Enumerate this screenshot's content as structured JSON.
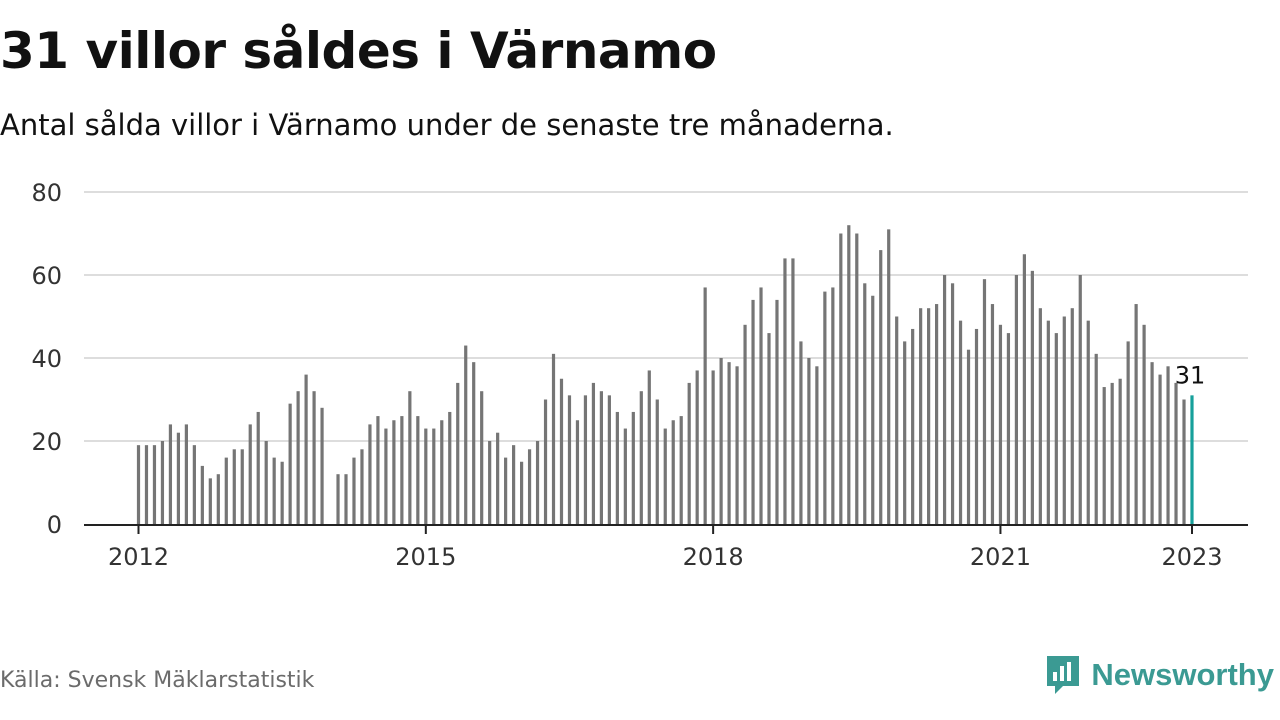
{
  "title": "31 villor såldes i Värnamo",
  "subtitle": "Antal sålda villor i Värnamo under de senaste tre månaderna.",
  "source": "Källa: Svensk Mäklarstatistik",
  "brand": {
    "name": "Newsworthy",
    "icon": "newsworthy-logo-icon"
  },
  "colors": {
    "bar": "#757575",
    "highlight": "#17a09b",
    "grid": "#dddddd",
    "axis": "#222222",
    "brand": "#3b9a93"
  },
  "chart_data": {
    "type": "bar",
    "start": "2012-01",
    "series": [
      {
        "values": [
          19,
          19,
          19,
          20,
          24,
          22,
          24,
          19,
          14,
          11,
          12,
          16,
          18,
          18,
          24,
          27,
          20,
          16,
          15,
          29,
          32,
          36,
          32,
          28,
          null,
          12,
          12,
          16,
          18,
          24,
          26,
          23,
          25,
          26,
          32,
          26,
          23,
          23,
          25,
          27,
          34,
          43,
          39,
          32,
          20,
          22,
          16,
          19,
          15,
          18,
          20,
          30,
          41,
          35,
          31,
          25,
          31,
          34,
          32,
          31,
          27,
          23,
          27,
          32,
          37,
          30,
          23,
          25,
          26,
          34,
          37,
          57,
          37,
          40,
          39,
          38,
          48,
          54,
          57,
          46,
          54,
          64,
          64,
          44,
          40,
          38,
          56,
          57,
          70,
          72,
          70,
          58,
          55,
          66,
          71,
          50,
          44,
          47,
          52,
          52,
          53,
          60,
          58,
          49,
          42,
          47,
          59,
          53,
          48,
          46,
          60,
          65,
          61,
          52,
          49,
          46,
          50,
          52,
          60,
          49,
          41,
          33,
          34,
          35,
          44,
          53,
          48,
          39,
          36,
          38,
          34,
          30,
          31
        ]
      }
    ],
    "highlight_last": true,
    "annotation": "31",
    "xticks": [
      "2012",
      "2015",
      "2018",
      "2021",
      "2023"
    ],
    "yticks": [
      0,
      20,
      40,
      60,
      80
    ],
    "ylim": [
      0,
      80
    ],
    "grid": true,
    "legend": false
  }
}
